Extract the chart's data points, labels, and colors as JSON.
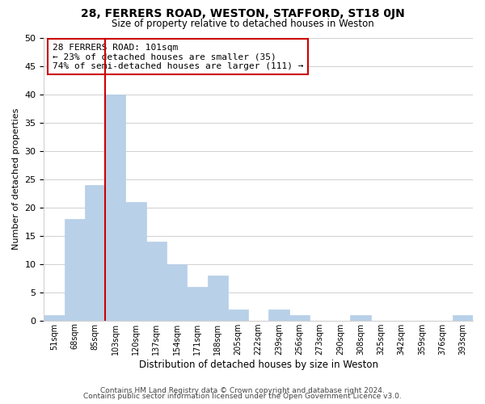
{
  "title": "28, FERRERS ROAD, WESTON, STAFFORD, ST18 0JN",
  "subtitle": "Size of property relative to detached houses in Weston",
  "xlabel": "Distribution of detached houses by size in Weston",
  "ylabel": "Number of detached properties",
  "footer_line1": "Contains HM Land Registry data © Crown copyright and database right 2024.",
  "footer_line2": "Contains public sector information licensed under the Open Government Licence v3.0.",
  "bin_labels": [
    "51sqm",
    "68sqm",
    "85sqm",
    "103sqm",
    "120sqm",
    "137sqm",
    "154sqm",
    "171sqm",
    "188sqm",
    "205sqm",
    "222sqm",
    "239sqm",
    "256sqm",
    "273sqm",
    "290sqm",
    "308sqm",
    "325sqm",
    "342sqm",
    "359sqm",
    "376sqm",
    "393sqm"
  ],
  "bar_heights": [
    1,
    18,
    24,
    40,
    21,
    14,
    10,
    6,
    8,
    2,
    0,
    2,
    1,
    0,
    0,
    1,
    0,
    0,
    0,
    0,
    1
  ],
  "bar_color": "#b8d0e8",
  "bar_edge_color": "#b8d0e8",
  "highlight_line_color": "#cc0000",
  "highlight_bin_index": 3,
  "ylim": [
    0,
    50
  ],
  "yticks": [
    0,
    5,
    10,
    15,
    20,
    25,
    30,
    35,
    40,
    45,
    50
  ],
  "annotation_title": "28 FERRERS ROAD: 101sqm",
  "annotation_line1": "← 23% of detached houses are smaller (35)",
  "annotation_line2": "74% of semi-detached houses are larger (111) →",
  "annotation_box_color": "#ffffff",
  "annotation_box_edge": "#cc0000",
  "grid_color": "#d0d0d0",
  "background_color": "#ffffff"
}
